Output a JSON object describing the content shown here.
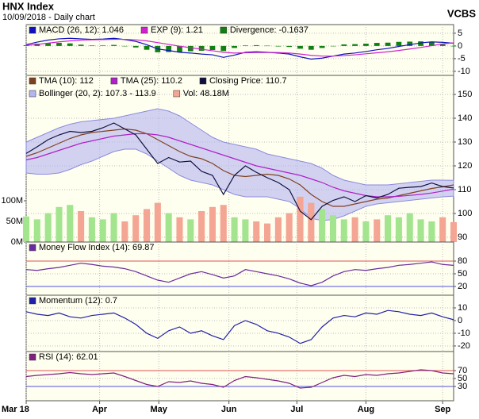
{
  "header": {
    "title": "HNX Index",
    "subtitle": "10/09/2018 - Daily chart",
    "source": "VCBS"
  },
  "chart_data": [
    {
      "type": "line",
      "ylim": [
        -11.6,
        8.4
      ],
      "yticks": [
        5,
        0,
        -5,
        -10
      ],
      "grid": true,
      "series": [
        {
          "name": "MACD (26, 12): 1.046",
          "kind": "line",
          "color": "#1010c0",
          "values": [
            0.5,
            1.5,
            2.3,
            2.8,
            3.0,
            2.8,
            2.6,
            2.7,
            3.0,
            2.5,
            1.8,
            0.5,
            -1.2,
            -1.8,
            -2.5,
            -2.8,
            -3.2,
            -3.5,
            -4.5,
            -3.6,
            -2.5,
            -2.3,
            -2.5,
            -2.8,
            -3.2,
            -4.3,
            -5.2,
            -4.8,
            -4.0,
            -3.2,
            -2.8,
            -2.2,
            -1.5,
            -1.0,
            -0.2,
            0.5,
            1.2,
            1.6,
            1.4,
            1.046
          ]
        },
        {
          "name": "EXP (9): 1.21",
          "kind": "line",
          "color": "#d020d0",
          "values": [
            0.2,
            0.6,
            1.1,
            1.6,
            2.0,
            2.3,
            2.4,
            2.5,
            2.6,
            2.6,
            2.4,
            2.0,
            1.3,
            0.6,
            -0.1,
            -0.7,
            -1.3,
            -1.9,
            -2.5,
            -2.8,
            -2.7,
            -2.6,
            -2.6,
            -2.6,
            -2.8,
            -3.2,
            -3.7,
            -4.0,
            -4.0,
            -3.8,
            -3.5,
            -3.1,
            -2.7,
            -2.3,
            -1.8,
            -1.2,
            -0.6,
            0.1,
            0.8,
            1.21
          ]
        },
        {
          "name": "Divergence: -0.1637",
          "kind": "bar",
          "color": "#108010",
          "values": [
            0.3,
            0.9,
            1.2,
            1.2,
            1.0,
            0.5,
            0.2,
            0.2,
            0.4,
            -0.1,
            -0.6,
            -1.5,
            -2.5,
            -2.4,
            -2.4,
            -2.1,
            -1.9,
            -1.6,
            -2.0,
            -0.8,
            0.2,
            0.3,
            0.1,
            -0.2,
            -0.4,
            -1.1,
            -1.5,
            -0.8,
            0,
            0.6,
            0.7,
            0.9,
            1.2,
            1.3,
            1.6,
            1.7,
            1.8,
            1.5,
            0.6,
            -0.1637
          ]
        }
      ]
    },
    {
      "type": "line",
      "ylim": [
        88,
        158
      ],
      "yticks": [
        150,
        140,
        130,
        120,
        110,
        100,
        90
      ],
      "grid": true,
      "y2lim": [
        0,
        404000000
      ],
      "y2ticks": [
        {
          "value": 100000000,
          "label": "100M"
        },
        {
          "value": 50000000,
          "label": "50M"
        },
        {
          "value": 0,
          "label": "0M"
        }
      ],
      "series": [
        {
          "name": "TMA (10): 112",
          "kind": "line",
          "color": "#804020",
          "values": [
            124,
            125.5,
            127.5,
            129.5,
            131.5,
            133,
            134,
            134.5,
            135,
            135.5,
            135,
            133.5,
            131,
            128.5,
            126,
            124,
            123,
            121,
            118,
            116,
            115.5,
            116,
            116.5,
            116,
            114.5,
            112,
            108,
            105,
            103,
            103,
            104,
            105,
            106,
            106.5,
            107.5,
            108.5,
            109.5,
            110.5,
            111.2,
            112
          ]
        },
        {
          "name": "TMA (25): 110.2",
          "kind": "line",
          "color": "#b020c8",
          "values": [
            122.5,
            123.5,
            125,
            126.5,
            128,
            129.5,
            130.5,
            131.5,
            132.5,
            133,
            133.5,
            133.5,
            133,
            132,
            130.5,
            129,
            127.5,
            126,
            124.5,
            123,
            121.5,
            120,
            119,
            118,
            117,
            116,
            114.5,
            113,
            111,
            109.5,
            108.5,
            107.5,
            107,
            107,
            107.2,
            107.6,
            108,
            108.6,
            109.4,
            110.2
          ]
        },
        {
          "name": "Closing Price: 110.7",
          "kind": "line",
          "color": "#101040",
          "values": [
            125.2,
            128,
            131,
            133,
            134.5,
            134,
            134.5,
            136,
            138,
            135.5,
            133,
            127,
            121,
            123.5,
            121.6,
            122,
            117.7,
            116,
            108,
            116,
            120,
            117.3,
            115,
            113,
            110,
            101,
            97.4,
            103,
            105.5,
            107,
            105,
            107.5,
            106.5,
            108,
            110.6,
            111,
            111.3,
            112.8,
            111.3,
            110.7
          ]
        },
        {
          "name": "Bollinger (20, 2): 107.3 - 113.9",
          "kind": "band",
          "color": "#b4b4f0",
          "upper": [
            130,
            132,
            134,
            136,
            137.5,
            138.5,
            139,
            139.5,
            140,
            141,
            142,
            143,
            144,
            143,
            141,
            138,
            135,
            132,
            130,
            129,
            128,
            127,
            125,
            124,
            123,
            122,
            121,
            119,
            116,
            114,
            113,
            112,
            112,
            112,
            112.5,
            113,
            113.5,
            114,
            114,
            113.9
          ],
          "lower": [
            117,
            116.5,
            116.5,
            117,
            118.5,
            120.5,
            122,
            124,
            126,
            127,
            127,
            125,
            122,
            119,
            116,
            114,
            113,
            112,
            110,
            108,
            107,
            107,
            107,
            106,
            105,
            102,
            98,
            97,
            97.5,
            99,
            101,
            103,
            104,
            104.5,
            105,
            105.5,
            106,
            106.5,
            107,
            107.3
          ]
        },
        {
          "name": "Vol: 48.18M",
          "kind": "bar",
          "axis": "y2",
          "color": "#f4a593",
          "up_color": "#a3e48f",
          "down_color": "#f4a593",
          "values": [
            62000000,
            55000000,
            70000000,
            85000000,
            90000000,
            75000000,
            60000000,
            55000000,
            70000000,
            50000000,
            65000000,
            80000000,
            95000000,
            70000000,
            60000000,
            55000000,
            75000000,
            85000000,
            90000000,
            60000000,
            55000000,
            50000000,
            45000000,
            60000000,
            70000000,
            110000000,
            95000000,
            80000000,
            65000000,
            55000000,
            60000000,
            50000000,
            55000000,
            65000000,
            60000000,
            70000000,
            55000000,
            50000000,
            60000000,
            48180000
          ]
        }
      ]
    },
    {
      "type": "line",
      "ylim": [
        -0.6,
        125
      ],
      "yticks": [
        80,
        50,
        20
      ],
      "grid": true,
      "ref_lines": [
        {
          "value": 80,
          "color": "#e05050"
        },
        {
          "value": 20,
          "color": "#5050e0"
        }
      ],
      "series": [
        {
          "name": "Money Flow Index (14): 69.87",
          "kind": "line",
          "color": "#6a2aa0",
          "values": [
            60,
            58,
            62,
            65,
            70,
            75,
            72,
            68,
            66,
            62,
            55,
            45,
            35,
            30,
            40,
            50,
            55,
            48,
            40,
            45,
            60,
            55,
            50,
            45,
            38,
            28,
            22,
            30,
            45,
            55,
            60,
            58,
            62,
            65,
            70,
            72,
            75,
            78,
            72,
            69.87
          ]
        }
      ]
    },
    {
      "type": "line",
      "ylim": [
        -24.4,
        20
      ],
      "yticks": [
        10,
        0,
        -10,
        -20
      ],
      "grid": true,
      "series": [
        {
          "name": "Momentum (12): 0.7",
          "kind": "line",
          "color": "#2020a8",
          "values": [
            7,
            5,
            4,
            6,
            3,
            2,
            4,
            5,
            6,
            2,
            -3,
            -10,
            -14,
            -8,
            -5,
            -10,
            -8,
            -12,
            -15,
            -4,
            0,
            -3,
            -8,
            -10,
            -13,
            -18,
            -15,
            -5,
            2,
            4,
            3,
            6,
            5,
            8,
            7,
            5,
            4,
            6,
            3,
            0.7
          ]
        }
      ]
    },
    {
      "type": "line",
      "ylim": [
        -6,
        118
      ],
      "yticks": [
        70,
        50,
        30
      ],
      "grid": true,
      "ref_lines": [
        {
          "value": 70,
          "color": "#e05050"
        },
        {
          "value": 30,
          "color": "#5050e0"
        }
      ],
      "xlim": [
        0,
        39
      ],
      "xticks": [
        {
          "value": 0,
          "label": "Mar 18"
        },
        {
          "value": 6.7,
          "label": "Apr"
        },
        {
          "value": 12.1,
          "label": "May"
        },
        {
          "value": 18.5,
          "label": "Jun"
        },
        {
          "value": 24.7,
          "label": "Jul"
        },
        {
          "value": 31,
          "label": "Aug"
        },
        {
          "value": 38,
          "label": "Sep"
        }
      ],
      "series": [
        {
          "name": "RSI (14): 62.01",
          "kind": "line",
          "color": "#802080",
          "values": [
            55,
            58,
            60,
            62,
            65,
            62,
            60,
            62,
            64,
            55,
            45,
            35,
            30,
            42,
            40,
            44,
            38,
            35,
            28,
            45,
            55,
            52,
            48,
            44,
            38,
            26,
            28,
            40,
            52,
            58,
            55,
            60,
            58,
            62,
            64,
            68,
            72,
            70,
            64,
            62.01
          ]
        }
      ]
    }
  ]
}
